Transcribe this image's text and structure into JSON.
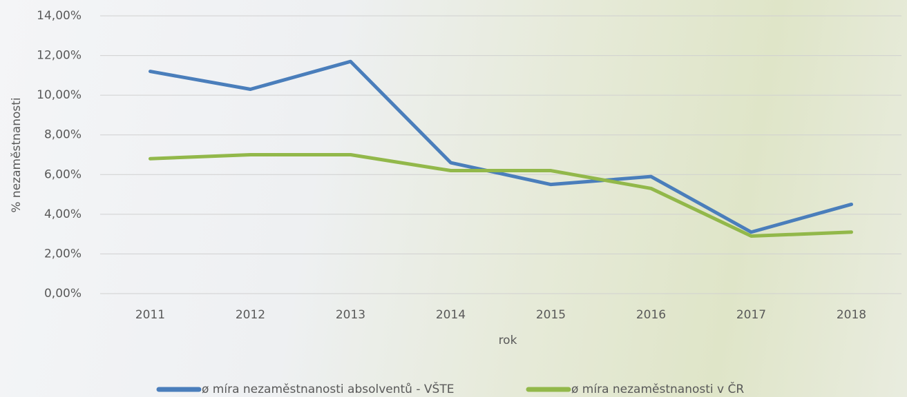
{
  "chart_data": {
    "type": "line",
    "x_label": "rok",
    "y_label": "% nezaměstnanosti",
    "categories": [
      "2011",
      "2012",
      "2013",
      "2014",
      "2015",
      "2016",
      "2017",
      "2018"
    ],
    "series": [
      {
        "name": "ø míra nezaměstnanosti absolventů - VŠTE",
        "color": "#4a7ebb",
        "values": [
          11.2,
          10.3,
          11.7,
          6.6,
          5.5,
          5.9,
          3.1,
          4.5
        ]
      },
      {
        "name": "ø míra nezaměstnanosti v ČR",
        "color": "#92b84a",
        "values": [
          6.8,
          7.0,
          7.0,
          6.2,
          6.2,
          5.3,
          2.9,
          3.1
        ]
      }
    ],
    "ylim": [
      0,
      14
    ],
    "yticks": [
      {
        "value": 0,
        "label": "0,00%"
      },
      {
        "value": 2,
        "label": "2,00%"
      },
      {
        "value": 4,
        "label": "4,00%"
      },
      {
        "value": 6,
        "label": "6,00%"
      },
      {
        "value": 8,
        "label": "8,00%"
      },
      {
        "value": 10,
        "label": "10,00%"
      },
      {
        "value": 12,
        "label": "12,00%"
      },
      {
        "value": 14,
        "label": "14,00%"
      }
    ],
    "grid": true,
    "legend": "bottom"
  }
}
